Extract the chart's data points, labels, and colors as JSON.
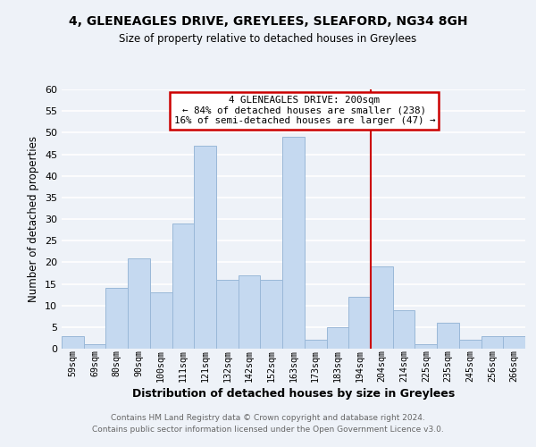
{
  "title1": "4, GLENEAGLES DRIVE, GREYLEES, SLEAFORD, NG34 8GH",
  "title2": "Size of property relative to detached houses in Greylees",
  "xlabel": "Distribution of detached houses by size in Greylees",
  "ylabel": "Number of detached properties",
  "categories": [
    "59sqm",
    "69sqm",
    "80sqm",
    "90sqm",
    "100sqm",
    "111sqm",
    "121sqm",
    "132sqm",
    "142sqm",
    "152sqm",
    "163sqm",
    "173sqm",
    "183sqm",
    "194sqm",
    "204sqm",
    "214sqm",
    "225sqm",
    "235sqm",
    "245sqm",
    "256sqm",
    "266sqm"
  ],
  "values": [
    3,
    1,
    14,
    21,
    13,
    29,
    47,
    16,
    17,
    16,
    49,
    2,
    5,
    12,
    19,
    9,
    1,
    6,
    2,
    3,
    3
  ],
  "bar_color": "#c5d9f0",
  "bar_edge_color": "#9ab8d8",
  "vline_x": 13.5,
  "vline_color": "#cc0000",
  "ylim": [
    0,
    60
  ],
  "yticks": [
    0,
    5,
    10,
    15,
    20,
    25,
    30,
    35,
    40,
    45,
    50,
    55,
    60
  ],
  "annotation_title": "4 GLENEAGLES DRIVE: 200sqm",
  "annotation_line1": "← 84% of detached houses are smaller (238)",
  "annotation_line2": "16% of semi-detached houses are larger (47) →",
  "annotation_box_edge": "#cc0000",
  "background_color": "#eef2f8",
  "grid_color": "#ffffff",
  "footer1": "Contains HM Land Registry data © Crown copyright and database right 2024.",
  "footer2": "Contains public sector information licensed under the Open Government Licence v3.0."
}
